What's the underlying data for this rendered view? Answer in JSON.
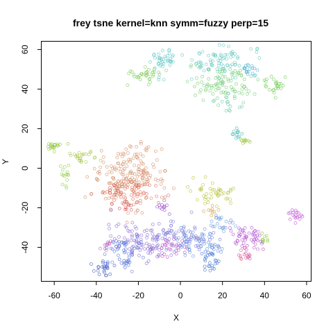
{
  "chart_data": {
    "type": "scatter",
    "title": "frey tsne kernel=knn symm=fuzzy perp=15",
    "xlabel": "X",
    "ylabel": "Y",
    "xlim": [
      -66,
      62
    ],
    "ylim": [
      -57,
      64
    ],
    "xticks": [
      -60,
      -40,
      -20,
      0,
      20,
      40,
      60
    ],
    "yticks": [
      -40,
      -20,
      0,
      20,
      40,
      60
    ],
    "grid": false,
    "legend": "none",
    "marker": "open-circle",
    "seed": 20231,
    "clusters": [
      {
        "cx": -8,
        "cy": 54,
        "sx": 3,
        "sy": 3,
        "n": 40,
        "color": "#5fc6c6"
      },
      {
        "cx": -18,
        "cy": 47,
        "sx": 4,
        "sy": 2,
        "n": 35,
        "color": "#7fcf5a"
      },
      {
        "cx": 18,
        "cy": 54,
        "sx": 8,
        "sy": 4,
        "n": 90,
        "color": "#66c8c0"
      },
      {
        "cx": 20,
        "cy": 43,
        "sx": 8,
        "sy": 5,
        "n": 90,
        "color": "#74cf72"
      },
      {
        "cx": 22,
        "cy": 34,
        "sx": 3,
        "sy": 2,
        "n": 15,
        "color": "#62c6b0"
      },
      {
        "cx": 33,
        "cy": 50,
        "sx": 2,
        "sy": 2,
        "n": 15,
        "color": "#4aaed6"
      },
      {
        "cx": 45,
        "cy": 42,
        "sx": 3,
        "sy": 3,
        "n": 25,
        "color": "#6dcc52"
      },
      {
        "cx": 26,
        "cy": 18,
        "sx": 1.5,
        "sy": 1.5,
        "n": 12,
        "color": "#3cb5b0"
      },
      {
        "cx": 31,
        "cy": 14,
        "sx": 1.5,
        "sy": 1,
        "n": 10,
        "color": "#9cc23a"
      },
      {
        "cx": -60,
        "cy": 11,
        "sx": 2,
        "sy": 1,
        "n": 20,
        "color": "#8ec83e"
      },
      {
        "cx": -47,
        "cy": 6,
        "sx": 3,
        "sy": 1.5,
        "n": 25,
        "color": "#a8c54a"
      },
      {
        "cx": -54,
        "cy": -4,
        "sx": 1.5,
        "sy": 3,
        "n": 15,
        "color": "#8ccc3e"
      },
      {
        "cx": -24,
        "cy": -4,
        "sx": 9,
        "sy": 7,
        "n": 180,
        "color": "#d4906a"
      },
      {
        "cx": -24,
        "cy": -12,
        "sx": 7,
        "sy": 4,
        "n": 60,
        "color": "#e06c5a"
      },
      {
        "cx": -24,
        "cy": -20,
        "sx": 2,
        "sy": 1.5,
        "n": 12,
        "color": "#d24a4a"
      },
      {
        "cx": -32,
        "cy": -13,
        "sx": 2,
        "sy": 3,
        "n": 15,
        "color": "#d65a46"
      },
      {
        "cx": -7,
        "cy": -20,
        "sx": 1.5,
        "sy": 1.5,
        "n": 12,
        "color": "#9a4ed0"
      },
      {
        "cx": 16,
        "cy": -13,
        "sx": 6,
        "sy": 3,
        "n": 45,
        "color": "#b8c23a"
      },
      {
        "cx": 15,
        "cy": -22,
        "sx": 2,
        "sy": 2,
        "n": 10,
        "color": "#d0a040"
      },
      {
        "cx": 55,
        "cy": -24,
        "sx": 1.5,
        "sy": 2,
        "n": 18,
        "color": "#c04ed4"
      },
      {
        "cx": -20,
        "cy": -38,
        "sx": 7,
        "sy": 5,
        "n": 90,
        "color": "#8c6ad6"
      },
      {
        "cx": -26,
        "cy": -40,
        "sx": 4,
        "sy": 3,
        "n": 40,
        "color": "#5a7ad6"
      },
      {
        "cx": 0,
        "cy": -35,
        "sx": 8,
        "sy": 4,
        "n": 90,
        "color": "#7a78d8"
      },
      {
        "cx": 10,
        "cy": -38,
        "sx": 6,
        "sy": 4,
        "n": 50,
        "color": "#5f8fe0"
      },
      {
        "cx": -5,
        "cy": -40,
        "sx": 3,
        "sy": 2,
        "n": 25,
        "color": "#c050c8"
      },
      {
        "cx": 32,
        "cy": -36,
        "sx": 4,
        "sy": 4,
        "n": 55,
        "color": "#b04ed0"
      },
      {
        "cx": 30,
        "cy": -44,
        "sx": 2,
        "sy": 1.5,
        "n": 12,
        "color": "#e05a8a"
      },
      {
        "cx": 40,
        "cy": -35,
        "sx": 1.5,
        "sy": 1.5,
        "n": 10,
        "color": "#8ec83e"
      },
      {
        "cx": 14,
        "cy": -47,
        "sx": 2,
        "sy": 3,
        "n": 25,
        "color": "#3f72d0"
      },
      {
        "cx": -37,
        "cy": -50,
        "sx": 3,
        "sy": 1.5,
        "n": 25,
        "color": "#3f5ac8"
      },
      {
        "cx": -25,
        "cy": -48,
        "sx": 2,
        "sy": 2,
        "n": 12,
        "color": "#4064d0"
      },
      {
        "cx": -35,
        "cy": -39,
        "sx": 2,
        "sy": 1.5,
        "n": 10,
        "color": "#c060c0"
      },
      {
        "cx": 20,
        "cy": -28,
        "sx": 3,
        "sy": 2,
        "n": 20,
        "color": "#6a9ae0"
      }
    ]
  }
}
